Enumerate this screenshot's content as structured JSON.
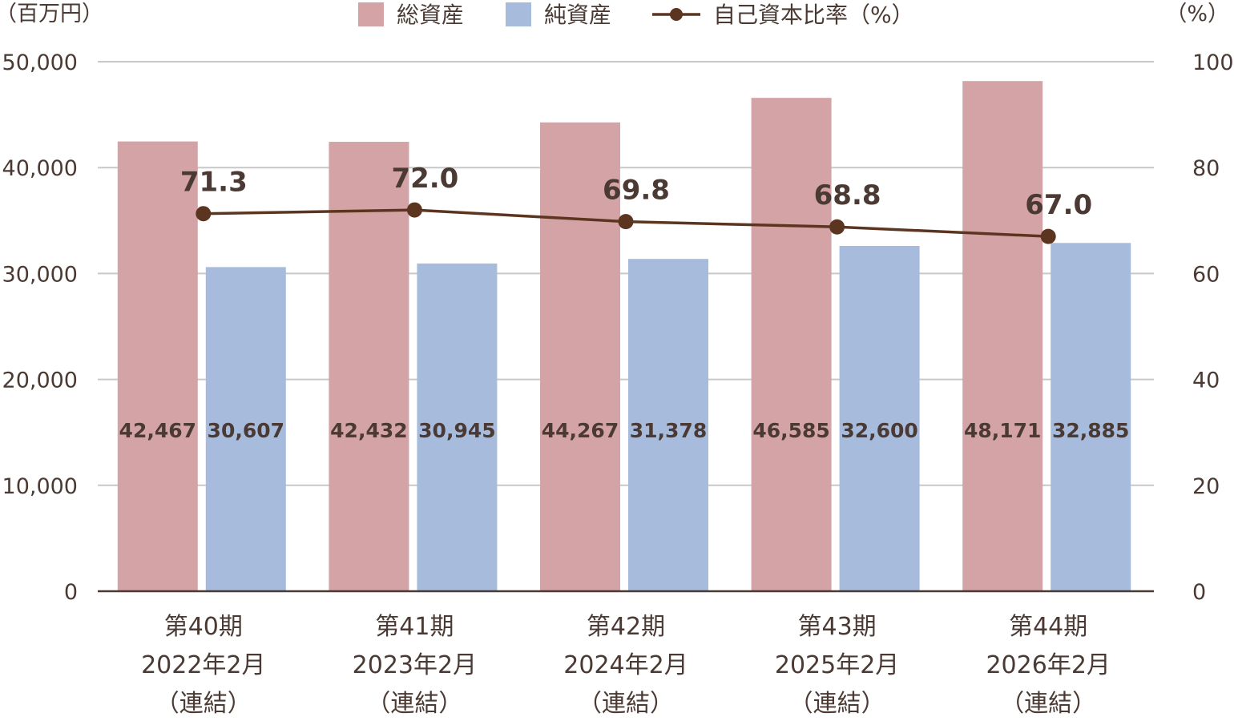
{
  "chart_data": {
    "type": "bar",
    "categories": [
      [
        "第40期",
        "2022年2月",
        "（連結）"
      ],
      [
        "第41期",
        "2023年2月",
        "（連結）"
      ],
      [
        "第42期",
        "2024年2月",
        "（連結）"
      ],
      [
        "第43期",
        "2025年2月",
        "（連結）"
      ],
      [
        "第44期",
        "2026年2月",
        "（連結）"
      ]
    ],
    "series": [
      {
        "name": "総資産",
        "type": "bar",
        "axis": "left",
        "color": "#d4a3a6",
        "values": [
          42467,
          42432,
          44267,
          46585,
          48171
        ],
        "labels": [
          "42,467",
          "42,432",
          "44,267",
          "46,585",
          "48,171"
        ]
      },
      {
        "name": "純資産",
        "type": "bar",
        "axis": "left",
        "color": "#a7bcdd",
        "values": [
          30607,
          30945,
          31378,
          32600,
          32885
        ],
        "labels": [
          "30,607",
          "30,945",
          "31,378",
          "32,600",
          "32,885"
        ]
      },
      {
        "name": "自己資本比率（%）",
        "type": "line",
        "axis": "right",
        "color": "#5c3520",
        "values": [
          71.3,
          72.0,
          69.8,
          68.8,
          67.0
        ],
        "labels": [
          "71.3",
          "72.0",
          "69.8",
          "68.8",
          "67.0"
        ]
      }
    ],
    "left_axis": {
      "unit": "（百万円）",
      "ylim": [
        0,
        50000
      ],
      "ticks": [
        "0",
        "10,000",
        "20,000",
        "30,000",
        "40,000",
        "50,000"
      ]
    },
    "right_axis": {
      "unit": "（%）",
      "ylim": [
        0,
        100
      ],
      "ticks": [
        "0",
        "20",
        "40",
        "60",
        "80",
        "100"
      ]
    },
    "grid": true,
    "legend_position": "top-center",
    "grid_color": "#c8c8c8",
    "axis_color": "#4a3a33"
  }
}
